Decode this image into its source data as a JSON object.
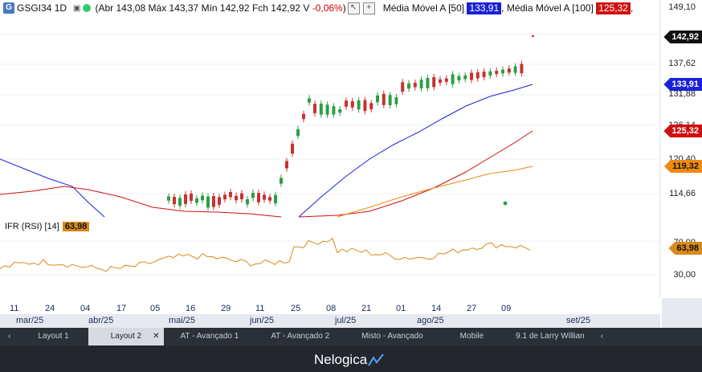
{
  "legend": {
    "symbol": "GSGI34 1D",
    "ohlc_text": "(Abr 143,08 Máx 143,37 Mín 142,92 Fch 142,92",
    "volume_text": "V",
    "change_text": "-0,06%",
    "close_paren": ")",
    "ma50_label": "Média Móvel A [50]",
    "ma50_value": "133,91",
    "ma100_label": "Média Móvel A [100]",
    "ma100_value": "125,32",
    "colors": {
      "ma50": "#1a22d6",
      "ma100": "#d01010",
      "ma200": "#f08a10",
      "rsi": "#d88a1a",
      "up": "#2e9e47",
      "down": "#c83232"
    }
  },
  "y_axis": {
    "ticks": [
      "149,10",
      "137,62",
      "131,88",
      "126,14",
      "120,40",
      "114,66",
      "70,00",
      "30,00"
    ]
  },
  "price_tags": {
    "last": "142,92",
    "ma50": "133,91",
    "ma100": "125,32",
    "ma200": "119,32",
    "rsi": "63,98"
  },
  "rsi": {
    "label": "IFR (RSI) [14]",
    "value": "63,98"
  },
  "x_axis": {
    "days": [
      "11",
      "24",
      "04",
      "17",
      "05",
      "16",
      "29",
      "11",
      "25",
      "08",
      "21",
      "01",
      "14",
      "27",
      "09"
    ],
    "months": [
      "mar/25",
      "abr/25",
      "mai/25",
      "jun/25",
      "jul/25",
      "ago/25",
      "set/25"
    ]
  },
  "tabs": [
    "Layout 1",
    "Layout 2",
    "AT - Avançado 1",
    "AT - Avançado 2",
    "Misto - Avançado",
    "Mobile",
    "9.1 de Larry Willian"
  ],
  "active_tab": "Layout 2",
  "brand": "Nelogica"
}
